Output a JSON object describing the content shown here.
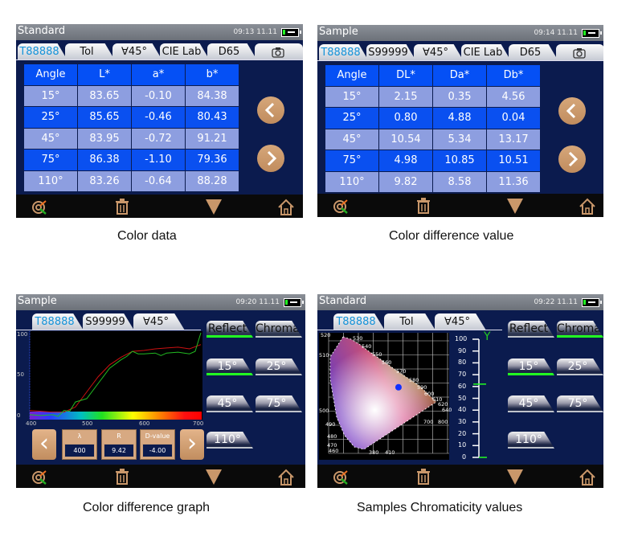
{
  "colors": {
    "accent_tan": "#c9976a",
    "header_blue": "#0550f5",
    "row_light": "#8d9ee0",
    "navy_bg": "#0b1b4e",
    "active_green": "#22ff22"
  },
  "panels": [
    {
      "title": "Standard",
      "time": "09:13 11.11",
      "tabs": [
        "T88888",
        "Tol",
        "∀45°",
        "CIE Lab",
        "D65"
      ],
      "camera_icon": "camera-icon",
      "table": {
        "headers": [
          "Angle",
          "L*",
          "a*",
          "b*"
        ],
        "rows": [
          [
            "15°",
            "83.65",
            "-0.10",
            "84.38"
          ],
          [
            "25°",
            "85.65",
            "-0.46",
            "80.43"
          ],
          [
            "45°",
            "83.95",
            "-0.72",
            "91.21"
          ],
          [
            "75°",
            "86.38",
            "-1.10",
            "79.36"
          ],
          [
            "110°",
            "83.26",
            "-0.64",
            "88.28"
          ]
        ]
      },
      "caption": "Color data"
    },
    {
      "title": "Sample",
      "time": "09:14 11.11",
      "tabs": [
        "T88888",
        "S99999",
        "∀45°",
        "CIE Lab",
        "D65"
      ],
      "camera_icon": "camera-icon",
      "table": {
        "headers": [
          "Angle",
          "DL*",
          "Da*",
          "Db*"
        ],
        "rows": [
          [
            "15°",
            "2.15",
            "0.35",
            "4.56"
          ],
          [
            "25°",
            "0.80",
            "4.88",
            "0.04"
          ],
          [
            "45°",
            "10.54",
            "5.34",
            "13.17"
          ],
          [
            "75°",
            "4.98",
            "10.85",
            "10.51"
          ],
          [
            "110°",
            "9.82",
            "8.58",
            "11.36"
          ]
        ]
      },
      "caption": "Color difference value"
    },
    {
      "title": "Sample",
      "time": "09:20 11.11",
      "tabs": [
        "T88888",
        "S99999",
        "∀45°"
      ],
      "mode_buttons": [
        "Reflect",
        "Chroma"
      ],
      "active_mode": "Reflect",
      "angle_buttons": [
        "15°",
        "25°",
        "45°",
        "75°",
        "110°"
      ],
      "active_angle": "15°",
      "graph": {
        "y_ticks": [
          "100",
          "50",
          "0"
        ],
        "x_ticks": [
          "400",
          "500",
          "600",
          "700"
        ],
        "xlim": [
          400,
          700
        ],
        "ylim": [
          0,
          100
        ],
        "series": [
          {
            "color": "#cc1111",
            "points": [
              [
                400,
                8
              ],
              [
                420,
                7
              ],
              [
                440,
                6
              ],
              [
                460,
                6
              ],
              [
                480,
                12
              ],
              [
                500,
                30
              ],
              [
                520,
                48
              ],
              [
                540,
                62
              ],
              [
                560,
                71
              ],
              [
                580,
                78
              ],
              [
                600,
                79
              ],
              [
                620,
                81
              ],
              [
                640,
                82
              ],
              [
                660,
                83
              ],
              [
                680,
                81
              ],
              [
                700,
                86
              ]
            ]
          },
          {
            "color": "#22bb22",
            "points": [
              [
                400,
                3
              ],
              [
                420,
                2
              ],
              [
                440,
                3
              ],
              [
                450,
                1
              ],
              [
                460,
                8
              ],
              [
                470,
                7
              ],
              [
                480,
                18
              ],
              [
                500,
                22
              ],
              [
                520,
                40
              ],
              [
                540,
                58
              ],
              [
                560,
                68
              ],
              [
                570,
                72
              ],
              [
                580,
                78
              ],
              [
                590,
                75
              ],
              [
                600,
                75
              ],
              [
                620,
                76
              ],
              [
                630,
                73
              ],
              [
                640,
                76
              ],
              [
                660,
                77
              ],
              [
                680,
                75
              ],
              [
                690,
                78
              ],
              [
                700,
                100
              ]
            ]
          }
        ]
      },
      "readout": {
        "labels": [
          "λ",
          "R",
          "D-value"
        ],
        "values": [
          "400",
          "9.42",
          "-4.00"
        ]
      },
      "caption": "Color difference graph"
    },
    {
      "title": "Standard",
      "time": "09:22 11.11",
      "tabs": [
        "T88888",
        "Tol",
        "∀45°"
      ],
      "mode_buttons": [
        "Reflect",
        "Chroma"
      ],
      "active_mode": "Chroma",
      "angle_buttons": [
        "15°",
        "25°",
        "45°",
        "75°",
        "110°"
      ],
      "active_angle": "15°",
      "cie": {
        "wavelength_labels": [
          "520",
          "530",
          "540",
          "550",
          "560",
          "570",
          "580",
          "590",
          "600",
          "610",
          "620",
          "640",
          "700",
          "800",
          "510",
          "500",
          "490",
          "480",
          "470",
          "460",
          "380",
          "410"
        ],
        "point": [
          0.47,
          0.47
        ]
      },
      "y_scale": {
        "label": "Y",
        "ticks": [
          "100",
          "90",
          "80",
          "70",
          "60",
          "50",
          "40",
          "30",
          "20",
          "10",
          "0"
        ],
        "value": 62
      },
      "caption": "Samples Chromaticity values"
    }
  ]
}
